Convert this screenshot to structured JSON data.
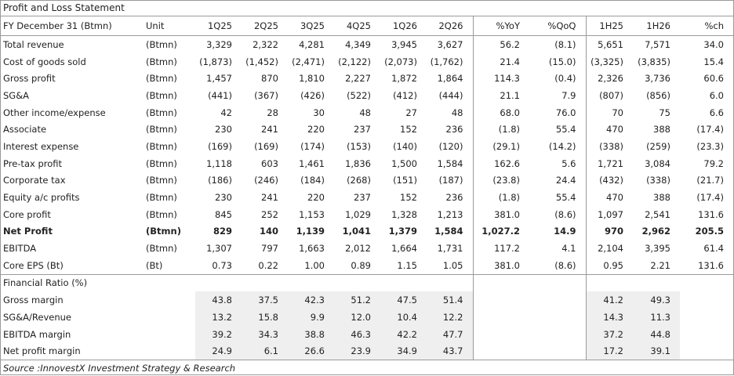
{
  "title": "Profit and Loss Statement",
  "header": {
    "label": "FY December 31 (Btmn)",
    "unit": "Unit",
    "periods": [
      "1Q25",
      "2Q25",
      "3Q25",
      "4Q25",
      "1Q26",
      "2Q26"
    ],
    "yoy": "%YoY",
    "qoq": "%QoQ",
    "h1": "1H25",
    "h2": "1H26",
    "ch": "%ch"
  },
  "rows": [
    {
      "label": "Total revenue",
      "unit": "(Btmn)",
      "q": [
        "3,329",
        "2,322",
        "4,281",
        "4,349",
        "3,945",
        "3,627"
      ],
      "yoy": "56.2",
      "qoq": "(8.1)",
      "h1": "5,651",
      "h2": "7,571",
      "ch": "34.0"
    },
    {
      "label": "Cost of goods sold",
      "unit": "(Btmn)",
      "q": [
        "(1,873)",
        "(1,452)",
        "(2,471)",
        "(2,122)",
        "(2,073)",
        "(1,762)"
      ],
      "yoy": "21.4",
      "qoq": "(15.0)",
      "h1": "(3,325)",
      "h2": "(3,835)",
      "ch": "15.4"
    },
    {
      "label": "Gross profit",
      "unit": "(Btmn)",
      "q": [
        "1,457",
        "870",
        "1,810",
        "2,227",
        "1,872",
        "1,864"
      ],
      "yoy": "114.3",
      "qoq": "(0.4)",
      "h1": "2,326",
      "h2": "3,736",
      "ch": "60.6"
    },
    {
      "label": "SG&A",
      "unit": "(Btmn)",
      "q": [
        "(441)",
        "(367)",
        "(426)",
        "(522)",
        "(412)",
        "(444)"
      ],
      "yoy": "21.1",
      "qoq": "7.9",
      "h1": "(807)",
      "h2": "(856)",
      "ch": "6.0"
    },
    {
      "label": "Other income/expense",
      "unit": "(Btmn)",
      "q": [
        "42",
        "28",
        "30",
        "48",
        "27",
        "48"
      ],
      "yoy": "68.0",
      "qoq": "76.0",
      "h1": "70",
      "h2": "75",
      "ch": "6.6"
    },
    {
      "label": "Associate",
      "unit": "(Btmn)",
      "q": [
        "230",
        "241",
        "220",
        "237",
        "152",
        "236"
      ],
      "yoy": "(1.8)",
      "qoq": "55.4",
      "h1": "470",
      "h2": "388",
      "ch": "(17.4)"
    },
    {
      "label": "Interest expense",
      "unit": "(Btmn)",
      "q": [
        "(169)",
        "(169)",
        "(174)",
        "(153)",
        "(140)",
        "(120)"
      ],
      "yoy": "(29.1)",
      "qoq": "(14.2)",
      "h1": "(338)",
      "h2": "(259)",
      "ch": "(23.3)"
    },
    {
      "label": "Pre-tax profit",
      "unit": "(Btmn)",
      "q": [
        "1,118",
        "603",
        "1,461",
        "1,836",
        "1,500",
        "1,584"
      ],
      "yoy": "162.6",
      "qoq": "5.6",
      "h1": "1,721",
      "h2": "3,084",
      "ch": "79.2"
    },
    {
      "label": "Corporate tax",
      "unit": "(Btmn)",
      "q": [
        "(186)",
        "(246)",
        "(184)",
        "(268)",
        "(151)",
        "(187)"
      ],
      "yoy": "(23.8)",
      "qoq": "24.4",
      "h1": "(432)",
      "h2": "(338)",
      "ch": "(21.7)"
    },
    {
      "label": "Equity a/c profits",
      "unit": "(Btmn)",
      "q": [
        "230",
        "241",
        "220",
        "237",
        "152",
        "236"
      ],
      "yoy": "(1.8)",
      "qoq": "55.4",
      "h1": "470",
      "h2": "388",
      "ch": "(17.4)"
    },
    {
      "label": "Core profit",
      "unit": "(Btmn)",
      "q": [
        "845",
        "252",
        "1,153",
        "1,029",
        "1,328",
        "1,213"
      ],
      "yoy": "381.0",
      "qoq": "(8.6)",
      "h1": "1,097",
      "h2": "2,541",
      "ch": "131.6"
    },
    {
      "label": "Net Profit",
      "unit": "(Btmn)",
      "q": [
        "829",
        "140",
        "1,139",
        "1,041",
        "1,379",
        "1,584"
      ],
      "yoy": "1,027.2",
      "qoq": "14.9",
      "h1": "970",
      "h2": "2,962",
      "ch": "205.5"
    },
    {
      "label": "EBITDA",
      "unit": "(Btmn)",
      "q": [
        "1,307",
        "797",
        "1,663",
        "2,012",
        "1,664",
        "1,731"
      ],
      "yoy": "117.2",
      "qoq": "4.1",
      "h1": "2,104",
      "h2": "3,395",
      "ch": "61.4"
    },
    {
      "label": "Core EPS (Bt)",
      "unit": "(Bt)",
      "q": [
        "0.73",
        "0.22",
        "1.00",
        "0.89",
        "1.15",
        "1.05"
      ],
      "yoy": "381.0",
      "qoq": "(8.6)",
      "h1": "0.95",
      "h2": "2.21",
      "ch": "131.6"
    }
  ],
  "ratios_title": "Financial Ratio (%)",
  "ratios": [
    {
      "label": "Gross margin",
      "q": [
        "43.8",
        "37.5",
        "42.3",
        "51.2",
        "47.5",
        "51.4"
      ],
      "h1": "41.2",
      "h2": "49.3"
    },
    {
      "label": "SG&A/Revenue",
      "q": [
        "13.2",
        "15.8",
        "9.9",
        "12.0",
        "10.4",
        "12.2"
      ],
      "h1": "14.3",
      "h2": "11.3"
    },
    {
      "label": "EBITDA margin",
      "q": [
        "39.2",
        "34.3",
        "38.8",
        "46.3",
        "42.2",
        "47.7"
      ],
      "h1": "37.2",
      "h2": "44.8"
    },
    {
      "label": "Net profit margin",
      "q": [
        "24.9",
        "6.1",
        "26.6",
        "23.9",
        "34.9",
        "43.7"
      ],
      "h1": "17.2",
      "h2": "39.1"
    }
  ],
  "source": "Source :InnovestX Investment Strategy & Research"
}
